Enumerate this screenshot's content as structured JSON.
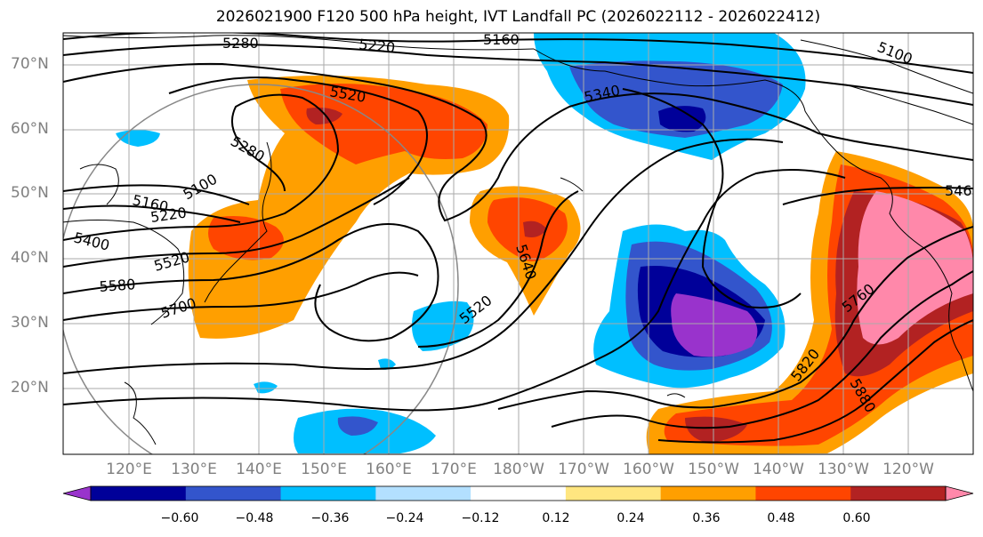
{
  "title": "2026021900 F120 500 hPa height, IVT Landfall PC (2026022112 - 2026022412)",
  "lat_labels": [
    "70°N",
    "60°N",
    "50°N",
    "40°N",
    "30°N",
    "20°N"
  ],
  "lon_labels": [
    "120°E",
    "130°E",
    "140°E",
    "150°E",
    "160°E",
    "170°E",
    "180°W",
    "170°W",
    "160°W",
    "150°W",
    "140°W",
    "130°W",
    "120°W"
  ],
  "contour_labels": [
    "5280",
    "5220",
    "5160",
    "5100",
    "5520",
    "5340",
    "5280",
    "5100",
    "5160",
    "5220",
    "5400",
    "5520",
    "5580",
    "5700",
    "5640",
    "5520",
    "5760",
    "5820",
    "5880",
    "546"
  ],
  "colorbar": {
    "colors": [
      "#9933cc",
      "#000099",
      "#3355cc",
      "#00bfff",
      "#b3e0ff",
      "#ffffff",
      "#ffe680",
      "#ff9f00",
      "#ff4500",
      "#b22222",
      "#ff88aa"
    ],
    "tick_labels": [
      "−0.60",
      "−0.48",
      "−0.36",
      "−0.24",
      "−0.12",
      "0.12",
      "0.24",
      "0.36",
      "0.48",
      "0.60"
    ]
  }
}
